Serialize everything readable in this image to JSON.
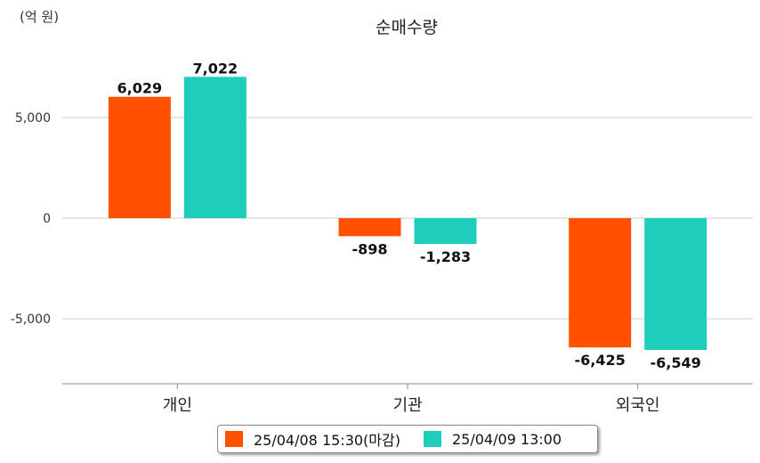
{
  "chart_data": {
    "type": "bar",
    "title": "순매수량",
    "unit_label": "(억 원)",
    "categories": [
      "개인",
      "기관",
      "외국인"
    ],
    "series": [
      {
        "name": "25/04/08 15:30(마감)",
        "color": "#ff5100",
        "values": [
          6029,
          -898,
          -6425
        ]
      },
      {
        "name": "25/04/09 13:00",
        "color": "#1ecdbb",
        "values": [
          7022,
          -1283,
          -6549
        ]
      }
    ],
    "data_labels": [
      [
        "6,029",
        "-898",
        "-6,425"
      ],
      [
        "7,022",
        "-1,283",
        "-6,549"
      ]
    ],
    "yticks": [
      5000,
      0,
      -5000
    ],
    "ytick_labels": [
      "5,000",
      "0",
      "-5,000"
    ],
    "ylim": [
      -8300,
      9100
    ],
    "grid": true,
    "legend_position": "bottom"
  }
}
